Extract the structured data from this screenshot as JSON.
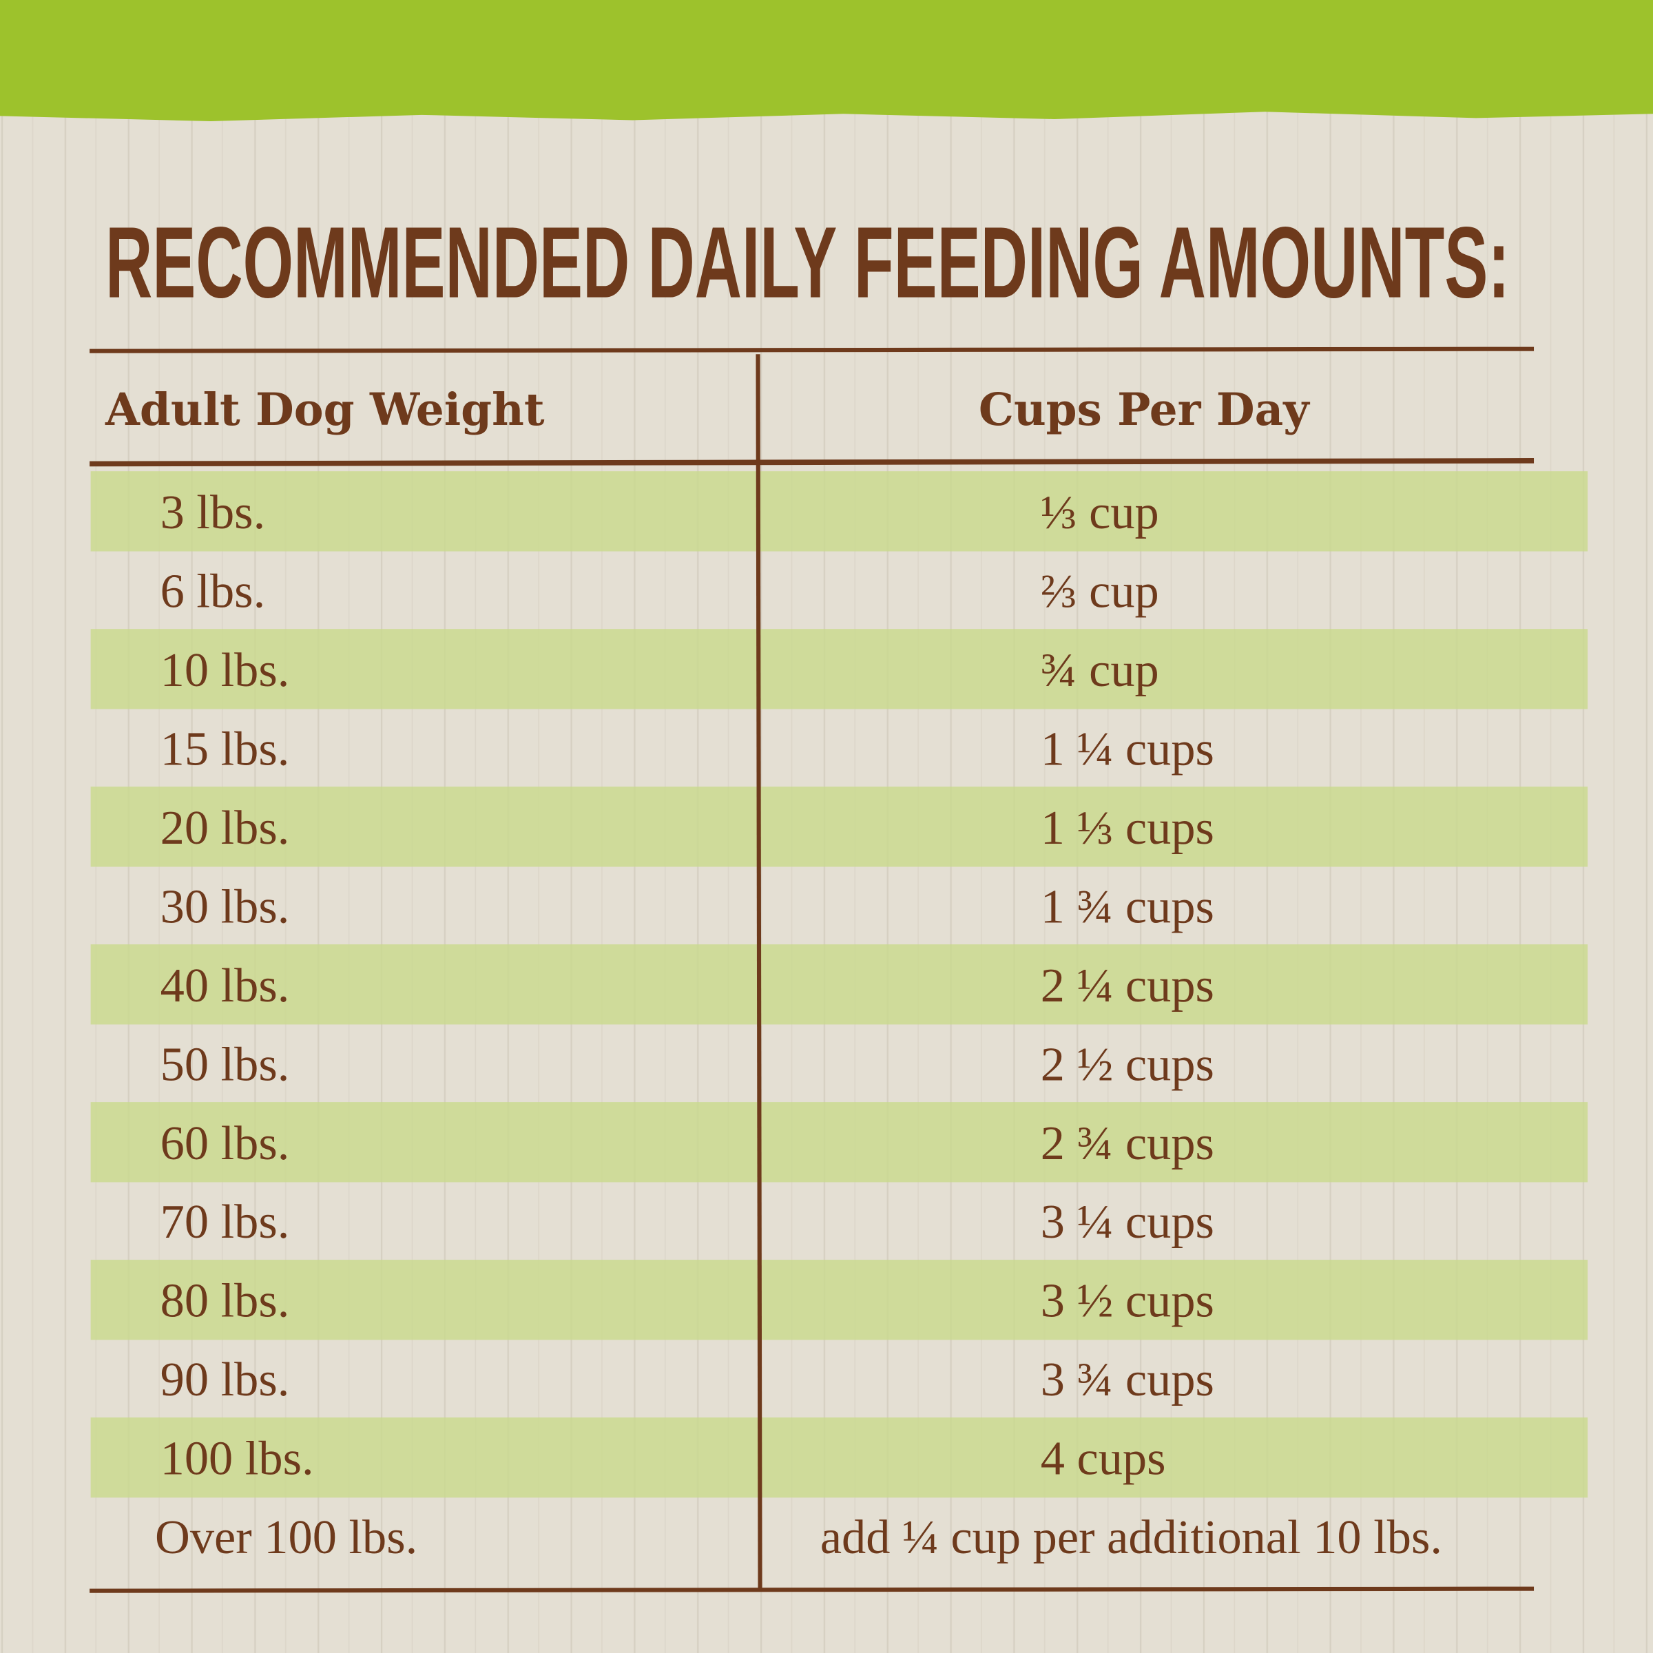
{
  "title": "RECOMMENDED DAILY FEEDING AMOUNTS:",
  "table": {
    "header": [
      "Adult Dog Weight",
      "Cups Per Day"
    ],
    "rows": [
      [
        "3 lbs.",
        "⅓ cup"
      ],
      [
        "6 lbs.",
        "⅔ cup"
      ],
      [
        "10 lbs.",
        "¾ cup"
      ],
      [
        "15 lbs.",
        "1 ¼ cups"
      ],
      [
        "20 lbs.",
        "1 ⅓ cups"
      ],
      [
        "30 lbs.",
        "1 ¾ cups"
      ],
      [
        "40 lbs.",
        "2 ¼ cups"
      ],
      [
        "50 lbs.",
        "2 ½ cups"
      ],
      [
        "60 lbs.",
        "2 ¾ cups"
      ],
      [
        "70 lbs.",
        "3 ¼ cups"
      ],
      [
        "80 lbs.",
        "3 ½ cups"
      ],
      [
        "90 lbs.",
        "3 ¾ cups"
      ],
      [
        "100 lbs.",
        "4 cups"
      ],
      [
        "Over 100 lbs.",
        "add ¼ cup per additional 10 lbs."
      ]
    ]
  }
}
